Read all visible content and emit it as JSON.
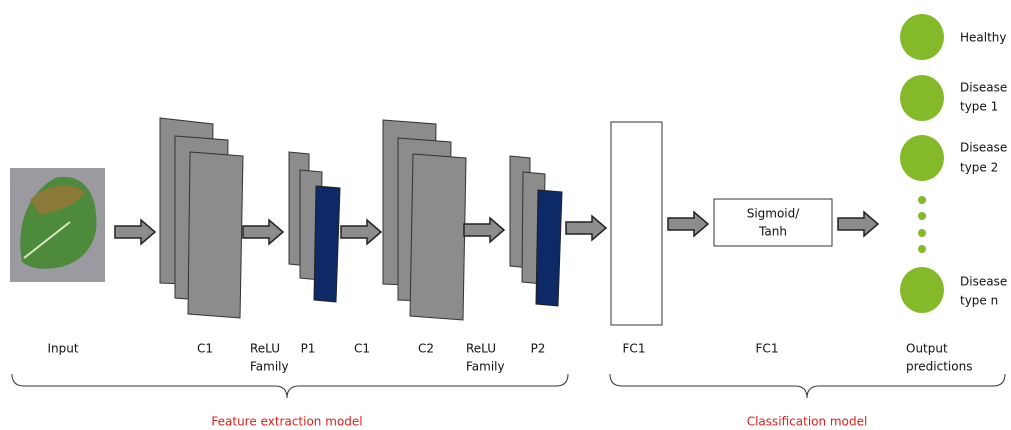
{
  "layer_labels": [
    [
      "Input"
    ],
    [
      "C1"
    ],
    [
      "ReLU",
      "Family"
    ],
    [
      "P1"
    ],
    [
      "C1"
    ],
    [
      "C2"
    ],
    [
      "ReLU",
      "Family"
    ],
    [
      "P2"
    ],
    [
      "FC1"
    ],
    [
      "FC1"
    ],
    [
      "Output",
      "predictions"
    ]
  ],
  "activation_box": [
    "Sigmoid/",
    "Tanh"
  ],
  "outputs": [
    [
      "Healthy"
    ],
    [
      "Disease",
      "type 1"
    ],
    [
      "Disease",
      "type 2"
    ],
    [
      "Disease",
      "type n"
    ]
  ],
  "groups": [
    "Feature extraction model",
    "Classification model"
  ]
}
